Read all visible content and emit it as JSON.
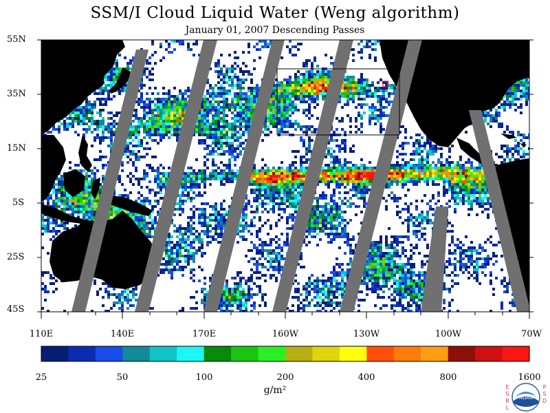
{
  "title": "SSM/I Cloud Liquid Water (Weng algorithm)",
  "subtitle": "January 01, 2007  Descending Passes",
  "lat_labels": [
    "55N",
    "35N",
    "15N",
    "5S",
    "25S",
    "45S"
  ],
  "lon_labels": [
    "110E",
    "140E",
    "170E",
    "160W",
    "130W",
    "100W",
    "70W"
  ],
  "colorbar": {
    "colors": [
      "#051f74",
      "#0b2cb0",
      "#1a4de8",
      "#138a9a",
      "#12c4ca",
      "#1bf7f4",
      "#078a0a",
      "#1cc412",
      "#2af023",
      "#b8b012",
      "#e0d40f",
      "#ffff10",
      "#ff4f0a",
      "#ff7c0c",
      "#ff9e12",
      "#8d0f0a",
      "#cf1010",
      "#fb1515"
    ],
    "tick_labels": [
      "25",
      "50",
      "100",
      "200",
      "400",
      "800",
      "1600"
    ]
  },
  "units": "g/m²",
  "colors": {
    "land": "#000000",
    "no_data": "#707070",
    "clear": "#ffffff"
  },
  "logo": {
    "left_letters": "ESRL",
    "right_letters": "PSD",
    "center_text": "NOAA"
  }
}
